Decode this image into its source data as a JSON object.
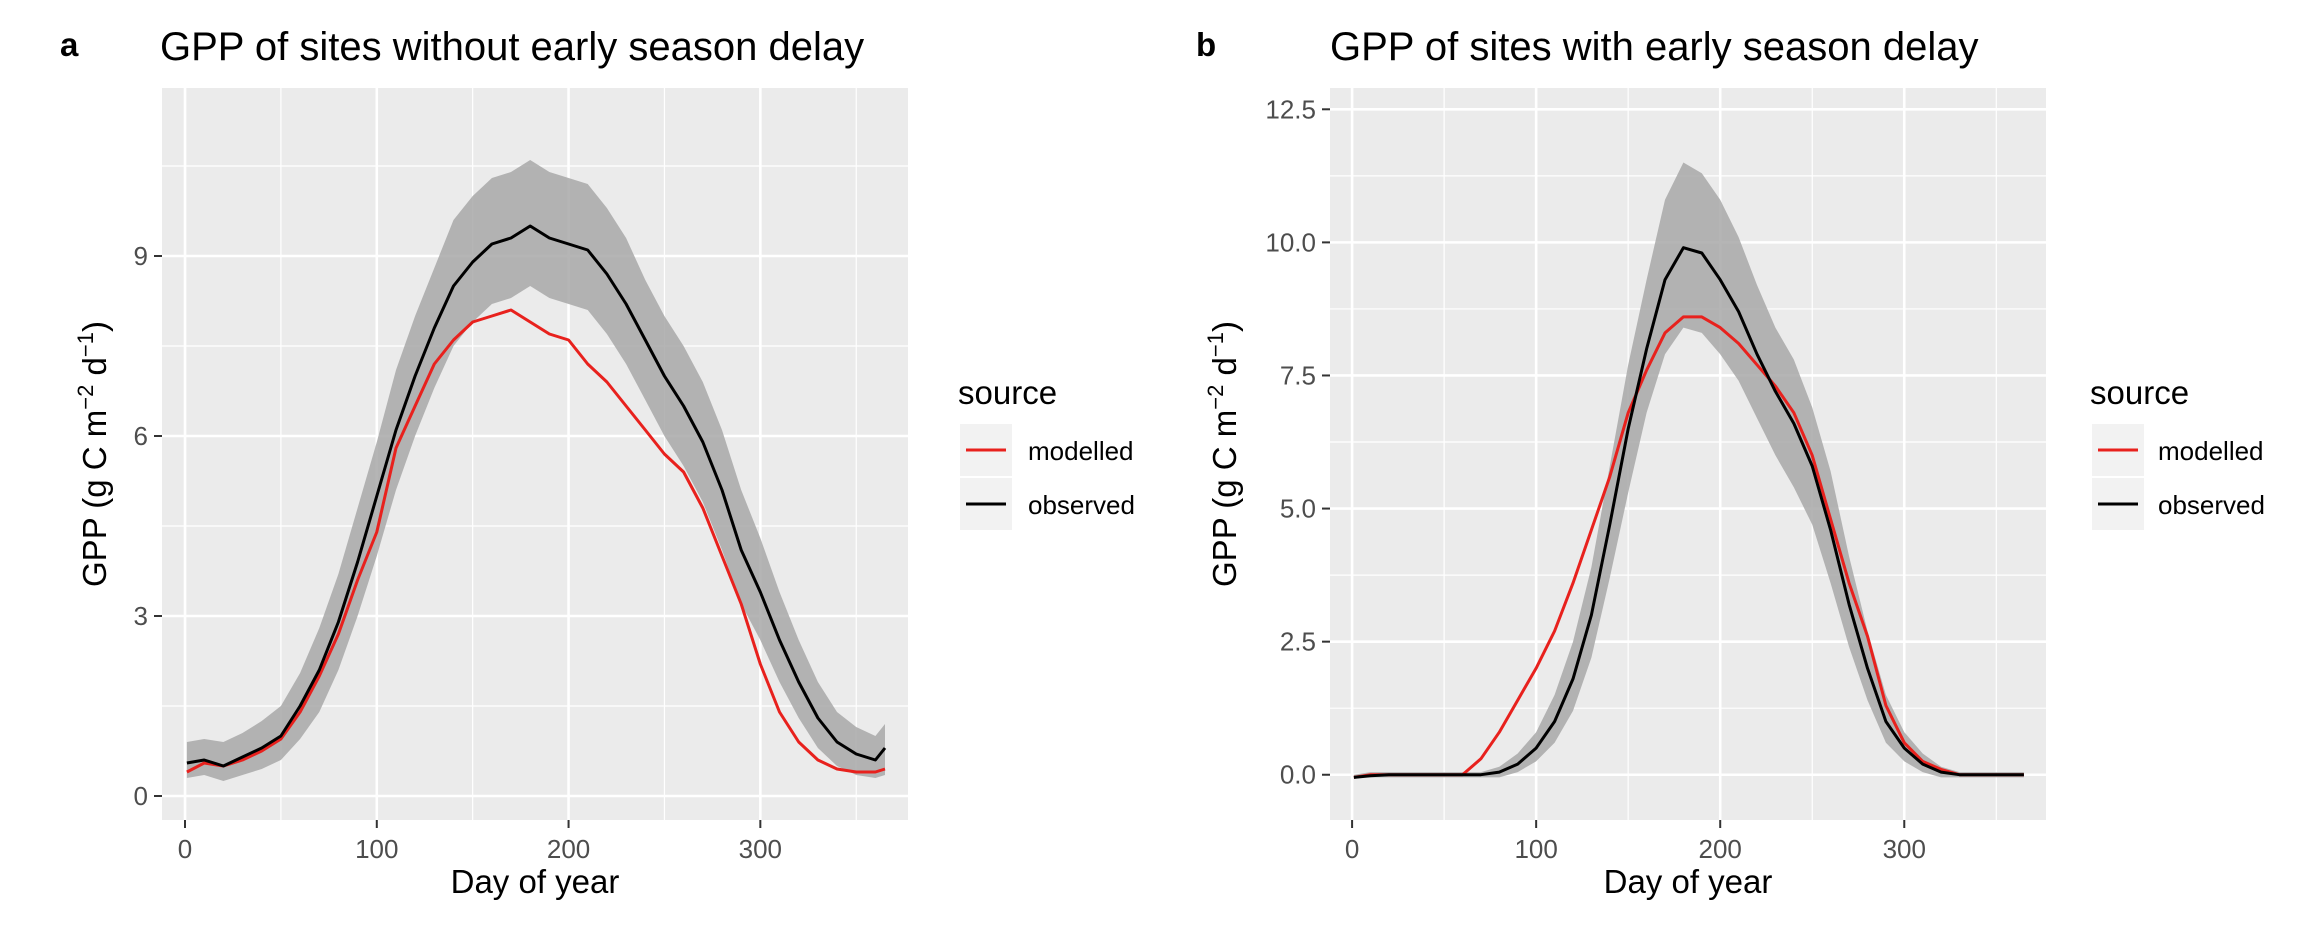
{
  "panels": [
    {
      "label": "a",
      "title": "GPP of sites without early season delay",
      "xlabel": "Day of year",
      "ylabel_prefix": "GPP (g C m",
      "ylabel_sup1": "−2",
      "ylabel_mid": " d",
      "ylabel_sup2": "−1",
      "ylabel_suffix": ")",
      "legend_title": "source",
      "legend_items": [
        "modelled",
        "observed"
      ]
    },
    {
      "label": "b",
      "title": "GPP of sites with early season delay",
      "xlabel": "Day of year",
      "ylabel_prefix": "GPP (g C m",
      "ylabel_sup1": "−2",
      "ylabel_mid": " d",
      "ylabel_sup2": "−1",
      "ylabel_suffix": ")",
      "legend_title": "source",
      "legend_items": [
        "modelled",
        "observed"
      ]
    }
  ],
  "colors": {
    "modelled": "#e8211d",
    "observed": "#000000",
    "ribbon": "#a8a8a8",
    "panel_bg": "#ebebeb",
    "grid": "#ffffff"
  },
  "chart_data": [
    {
      "type": "line",
      "title": "GPP of sites without early season delay",
      "xlabel": "Day of year",
      "ylabel": "GPP (g C m−2 d−1)",
      "xlim": [
        -12,
        377
      ],
      "ylim": [
        -0.4,
        11.8
      ],
      "xticks": [
        0,
        100,
        200,
        300
      ],
      "yticks": [
        0,
        3,
        6,
        9
      ],
      "ytick_labels": [
        "0",
        "3",
        "6",
        "9"
      ],
      "grid": true,
      "legend": "right",
      "series": [
        {
          "name": "observed",
          "x": [
            1,
            10,
            20,
            30,
            40,
            50,
            60,
            70,
            80,
            90,
            100,
            110,
            120,
            130,
            140,
            150,
            160,
            170,
            180,
            190,
            200,
            210,
            220,
            230,
            240,
            250,
            260,
            270,
            280,
            290,
            300,
            310,
            320,
            330,
            340,
            350,
            360,
            365
          ],
          "y": [
            0.55,
            0.6,
            0.5,
            0.65,
            0.8,
            1.0,
            1.5,
            2.1,
            2.9,
            3.9,
            5.0,
            6.1,
            7.0,
            7.8,
            8.5,
            8.9,
            9.2,
            9.3,
            9.5,
            9.3,
            9.2,
            9.1,
            8.7,
            8.2,
            7.6,
            7.0,
            6.5,
            5.9,
            5.1,
            4.1,
            3.4,
            2.6,
            1.9,
            1.3,
            0.9,
            0.7,
            0.6,
            0.8
          ],
          "ci_low": [
            0.3,
            0.35,
            0.25,
            0.35,
            0.45,
            0.6,
            0.95,
            1.4,
            2.1,
            3.0,
            4.0,
            5.1,
            6.0,
            6.8,
            7.5,
            7.9,
            8.2,
            8.3,
            8.5,
            8.3,
            8.2,
            8.1,
            7.7,
            7.2,
            6.6,
            6.0,
            5.5,
            4.9,
            4.1,
            3.2,
            2.6,
            1.9,
            1.3,
            0.8,
            0.5,
            0.35,
            0.3,
            0.35
          ],
          "ci_high": [
            0.9,
            0.95,
            0.9,
            1.05,
            1.25,
            1.5,
            2.05,
            2.8,
            3.7,
            4.8,
            5.9,
            7.1,
            8.0,
            8.8,
            9.6,
            10.0,
            10.3,
            10.4,
            10.6,
            10.4,
            10.3,
            10.2,
            9.8,
            9.3,
            8.6,
            8.0,
            7.5,
            6.9,
            6.1,
            5.1,
            4.3,
            3.4,
            2.6,
            1.9,
            1.4,
            1.15,
            1.0,
            1.2
          ]
        },
        {
          "name": "modelled",
          "x": [
            1,
            10,
            20,
            30,
            40,
            50,
            60,
            70,
            80,
            90,
            100,
            110,
            120,
            130,
            140,
            150,
            160,
            170,
            180,
            190,
            200,
            210,
            220,
            230,
            240,
            250,
            260,
            270,
            280,
            290,
            300,
            310,
            320,
            330,
            340,
            350,
            360,
            365
          ],
          "y": [
            0.4,
            0.55,
            0.5,
            0.6,
            0.75,
            0.95,
            1.4,
            2.0,
            2.7,
            3.6,
            4.4,
            5.8,
            6.5,
            7.2,
            7.6,
            7.9,
            8.0,
            8.1,
            7.9,
            7.7,
            7.6,
            7.2,
            6.9,
            6.5,
            6.1,
            5.7,
            5.4,
            4.8,
            4.0,
            3.2,
            2.2,
            1.4,
            0.9,
            0.6,
            0.45,
            0.4,
            0.4,
            0.45
          ]
        }
      ]
    },
    {
      "type": "line",
      "title": "GPP of sites with early season delay",
      "xlabel": "Day of year",
      "ylabel": "GPP (g C m−2 d−1)",
      "xlim": [
        -12,
        377
      ],
      "ylim": [
        -0.85,
        12.9
      ],
      "xticks": [
        0,
        100,
        200,
        300
      ],
      "yticks": [
        0,
        2.5,
        5,
        7.5,
        10,
        12.5
      ],
      "ytick_labels": [
        "0.0",
        "2.5",
        "5.0",
        "7.5",
        "10.0",
        "12.5"
      ],
      "grid": true,
      "legend": "right",
      "series": [
        {
          "name": "observed",
          "x": [
            1,
            10,
            20,
            30,
            40,
            50,
            60,
            70,
            80,
            90,
            100,
            110,
            120,
            130,
            140,
            150,
            160,
            170,
            180,
            190,
            200,
            210,
            220,
            230,
            240,
            250,
            260,
            270,
            280,
            290,
            300,
            310,
            320,
            330,
            340,
            350,
            360,
            365
          ],
          "y": [
            -0.05,
            -0.02,
            0,
            0,
            0,
            0,
            0,
            0,
            0.05,
            0.2,
            0.5,
            1.0,
            1.8,
            3.0,
            4.7,
            6.5,
            8.0,
            9.3,
            9.9,
            9.8,
            9.3,
            8.7,
            7.9,
            7.2,
            6.6,
            5.8,
            4.6,
            3.2,
            2.0,
            1.0,
            0.5,
            0.2,
            0.05,
            0,
            0,
            0,
            0,
            0
          ],
          "ci_low": [
            -0.05,
            -0.05,
            -0.05,
            -0.05,
            -0.05,
            -0.05,
            -0.05,
            -0.05,
            -0.05,
            0.05,
            0.25,
            0.6,
            1.2,
            2.2,
            3.7,
            5.3,
            6.8,
            7.9,
            8.4,
            8.3,
            7.9,
            7.4,
            6.7,
            6.0,
            5.4,
            4.7,
            3.6,
            2.4,
            1.4,
            0.6,
            0.25,
            0.05,
            -0.05,
            -0.05,
            -0.05,
            -0.05,
            -0.05,
            -0.05
          ],
          "ci_high": [
            0,
            0.05,
            0.05,
            0.05,
            0.05,
            0.05,
            0.05,
            0.05,
            0.15,
            0.4,
            0.8,
            1.5,
            2.5,
            3.9,
            5.8,
            7.7,
            9.3,
            10.8,
            11.5,
            11.3,
            10.8,
            10.1,
            9.2,
            8.4,
            7.8,
            6.9,
            5.7,
            4.1,
            2.7,
            1.5,
            0.8,
            0.4,
            0.15,
            0.05,
            0.05,
            0.05,
            0.05,
            0.05
          ]
        },
        {
          "name": "modelled",
          "x": [
            1,
            10,
            20,
            30,
            40,
            50,
            60,
            70,
            80,
            90,
            100,
            110,
            120,
            130,
            140,
            150,
            160,
            170,
            180,
            190,
            200,
            210,
            220,
            230,
            240,
            250,
            260,
            270,
            280,
            290,
            300,
            310,
            320,
            330,
            340,
            350,
            360,
            365
          ],
          "y": [
            -0.05,
            0,
            0,
            0,
            0,
            0,
            0,
            0.3,
            0.8,
            1.4,
            2.0,
            2.7,
            3.6,
            4.6,
            5.6,
            6.8,
            7.6,
            8.3,
            8.6,
            8.6,
            8.4,
            8.1,
            7.7,
            7.3,
            6.8,
            6.0,
            4.8,
            3.6,
            2.6,
            1.3,
            0.6,
            0.25,
            0.1,
            0,
            0,
            0,
            0,
            0
          ]
        }
      ]
    }
  ]
}
